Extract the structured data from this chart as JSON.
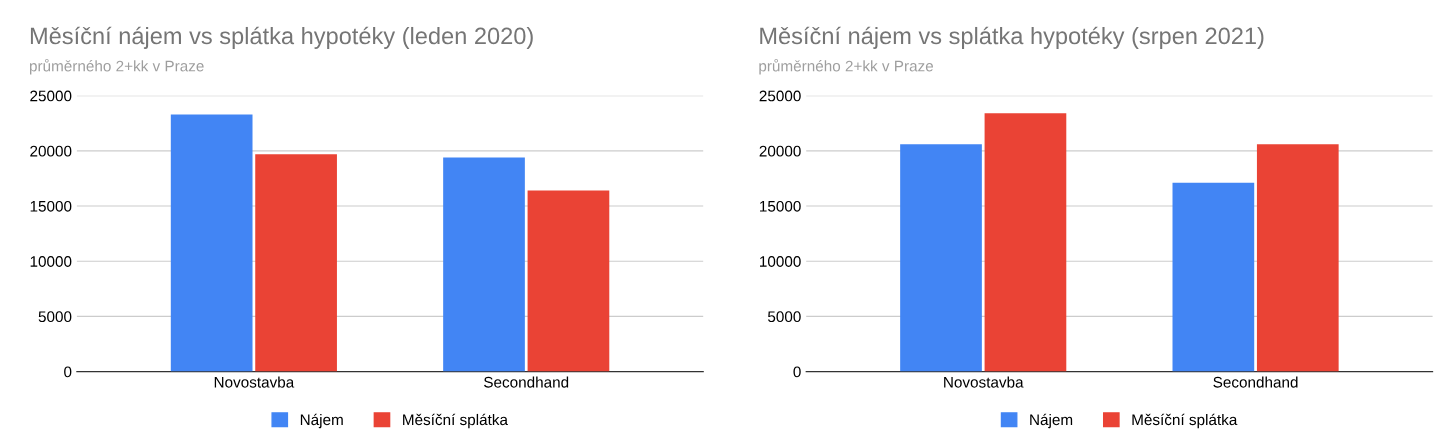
{
  "chart_data": [
    {
      "type": "bar",
      "title": "Měsíční nájem vs splátka hypotéky (leden 2020)",
      "subtitle": "průměrného 2+kk v Praze",
      "categories": [
        "Novostavba",
        "Secondhand"
      ],
      "series": [
        {
          "name": "Nájem",
          "color": "#4285f4",
          "values": [
            23300,
            19400
          ]
        },
        {
          "name": "Měsíční splátka",
          "color": "#ea4335",
          "values": [
            19700,
            16400
          ]
        }
      ],
      "ylim": [
        0,
        25000
      ],
      "yticks": [
        0,
        5000,
        10000,
        15000,
        20000,
        25000
      ],
      "grid": "y",
      "legend": "bottom"
    },
    {
      "type": "bar",
      "title": "Měsíční nájem vs splátka hypotéky (srpen 2021)",
      "subtitle": "průměrného 2+kk v Praze",
      "categories": [
        "Novostavba",
        "Secondhand"
      ],
      "series": [
        {
          "name": "Nájem",
          "color": "#4285f4",
          "values": [
            20600,
            17100
          ]
        },
        {
          "name": "Měsíční splátka",
          "color": "#ea4335",
          "values": [
            23400,
            20600
          ]
        }
      ],
      "ylim": [
        0,
        25000
      ],
      "yticks": [
        0,
        5000,
        10000,
        15000,
        20000,
        25000
      ],
      "grid": "y",
      "legend": "bottom"
    }
  ]
}
